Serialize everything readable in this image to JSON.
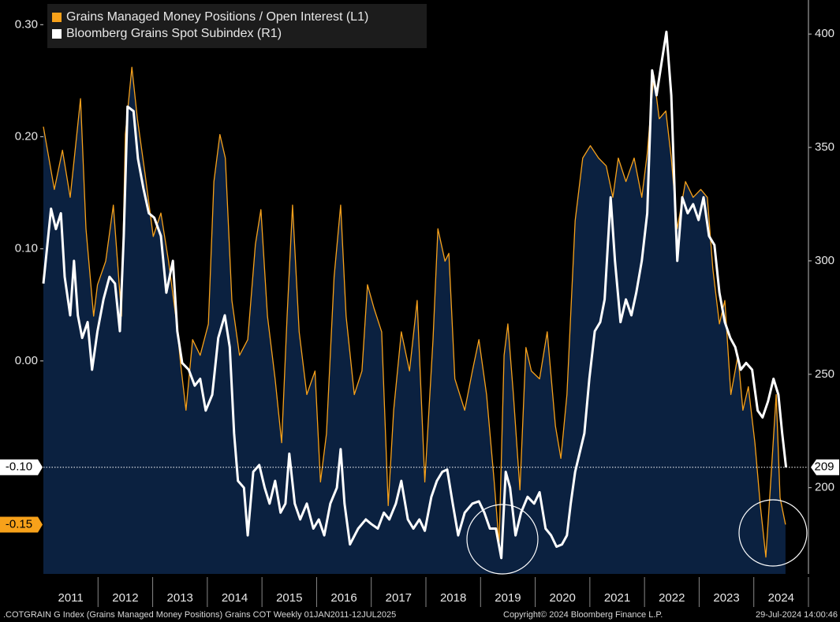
{
  "chart_data": {
    "type": "line",
    "xlim": [
      2011,
      2025
    ],
    "xticks": [
      {
        "value": 2011.5,
        "label": "2011"
      },
      {
        "value": 2012.5,
        "label": "2012"
      },
      {
        "value": 2013.5,
        "label": "2013"
      },
      {
        "value": 2014.5,
        "label": "2014"
      },
      {
        "value": 2015.5,
        "label": "2015"
      },
      {
        "value": 2016.5,
        "label": "2016"
      },
      {
        "value": 2017.5,
        "label": "2017"
      },
      {
        "value": 2018.5,
        "label": "2018"
      },
      {
        "value": 2019.5,
        "label": "2019"
      },
      {
        "value": 2020.5,
        "label": "2020"
      },
      {
        "value": 2021.5,
        "label": "2021"
      },
      {
        "value": 2022.5,
        "label": "2022"
      },
      {
        "value": 2023.5,
        "label": "2023"
      },
      {
        "value": 2024.5,
        "label": "2024"
      }
    ],
    "ylim": [
      -0.19,
      0.322
    ],
    "yticks": [
      {
        "value": 0.0,
        "label": "0.00"
      },
      {
        "value": 0.1,
        "label": "0.10"
      },
      {
        "value": 0.2,
        "label": "0.20"
      },
      {
        "value": 0.3,
        "label": "0.30"
      }
    ],
    "y2lim": [
      162,
      415
    ],
    "y2ticks": [
      200,
      250,
      300,
      350,
      400
    ],
    "legend": "upper left",
    "background": "#000000",
    "series": [
      {
        "name": "Grains Managed Money Positions / Open Interest (L1)",
        "color": "#f7a11a",
        "fill": "#0b2140",
        "last_label": "-0.15",
        "x": [
          2011.0,
          2011.2,
          2011.35,
          2011.49,
          2011.68,
          2011.78,
          2011.92,
          2011.99,
          2012.14,
          2012.28,
          2012.43,
          2012.5,
          2012.62,
          2012.72,
          2012.86,
          2013.01,
          2013.15,
          2013.29,
          2013.44,
          2013.51,
          2013.61,
          2013.73,
          2013.87,
          2014.02,
          2014.12,
          2014.23,
          2014.33,
          2014.45,
          2014.59,
          2014.74,
          2014.88,
          2014.98,
          2015.1,
          2015.24,
          2015.36,
          2015.46,
          2015.56,
          2015.68,
          2015.82,
          2015.97,
          2016.07,
          2016.18,
          2016.32,
          2016.44,
          2016.54,
          2016.69,
          2016.83,
          2016.93,
          2017.05,
          2017.19,
          2017.31,
          2017.41,
          2017.55,
          2017.7,
          2017.84,
          2017.98,
          2018.13,
          2018.22,
          2018.35,
          2018.42,
          2018.53,
          2018.71,
          2018.85,
          2018.97,
          2019.11,
          2019.25,
          2019.34,
          2019.43,
          2019.5,
          2019.6,
          2019.72,
          2019.83,
          2019.93,
          2020.08,
          2020.22,
          2020.37,
          2020.47,
          2020.58,
          2020.73,
          2020.87,
          2021.01,
          2021.16,
          2021.3,
          2021.42,
          2021.52,
          2021.66,
          2021.81,
          2021.95,
          2022.05,
          2022.17,
          2022.27,
          2022.39,
          2022.49,
          2022.6,
          2022.75,
          2022.89,
          2023.03,
          2023.15,
          2023.25,
          2023.37,
          2023.47,
          2023.58,
          2023.71,
          2023.8,
          2023.9,
          2024.02,
          2024.12,
          2024.22,
          2024.3,
          2024.41,
          2024.48,
          2024.58
        ],
        "values": [
          0.209,
          0.153,
          0.188,
          0.146,
          0.234,
          0.118,
          0.04,
          0.068,
          0.089,
          0.139,
          0.04,
          0.202,
          0.262,
          0.216,
          0.167,
          0.111,
          0.132,
          0.089,
          0.033,
          -0.002,
          -0.044,
          0.019,
          0.005,
          0.033,
          0.16,
          0.202,
          0.181,
          0.054,
          0.005,
          0.019,
          0.104,
          0.135,
          0.04,
          -0.016,
          -0.073,
          0.04,
          0.139,
          0.026,
          -0.03,
          -0.009,
          -0.108,
          -0.065,
          0.075,
          0.139,
          0.04,
          -0.03,
          -0.009,
          0.068,
          0.047,
          0.026,
          -0.129,
          -0.044,
          0.026,
          -0.009,
          0.054,
          -0.108,
          0.019,
          0.118,
          0.089,
          0.096,
          -0.016,
          -0.044,
          -0.009,
          0.019,
          -0.03,
          -0.108,
          -0.164,
          0.005,
          0.033,
          -0.03,
          -0.115,
          0.012,
          -0.009,
          -0.016,
          0.026,
          -0.058,
          -0.087,
          -0.03,
          0.125,
          0.181,
          0.192,
          0.181,
          0.174,
          0.146,
          0.181,
          0.16,
          0.181,
          0.146,
          0.185,
          0.255,
          0.216,
          0.223,
          0.181,
          0.118,
          0.16,
          0.146,
          0.153,
          0.146,
          0.082,
          0.033,
          0.054,
          -0.03,
          0.005,
          -0.044,
          -0.023,
          -0.073,
          -0.129,
          -0.175,
          -0.115,
          -0.03,
          -0.122,
          -0.146
        ]
      },
      {
        "name": "Bloomberg Grains Spot Subindex  (R1)",
        "color": "#ffffff",
        "axis": "y2",
        "last_label": "209",
        "last_label_left": "-0.10",
        "x": [
          2011.0,
          2011.09,
          2011.14,
          2011.23,
          2011.32,
          2011.39,
          2011.49,
          2011.56,
          2011.63,
          2011.71,
          2011.81,
          2011.89,
          2011.99,
          2012.1,
          2012.21,
          2012.31,
          2012.4,
          2012.47,
          2012.54,
          2012.65,
          2012.73,
          2012.83,
          2012.93,
          2013.03,
          2013.15,
          2013.25,
          2013.37,
          2013.45,
          2013.54,
          2013.66,
          2013.77,
          2013.87,
          2013.97,
          2014.09,
          2014.2,
          2014.32,
          2014.41,
          2014.49,
          2014.56,
          2014.67,
          2014.74,
          2014.84,
          2014.95,
          2015.05,
          2015.14,
          2015.24,
          2015.34,
          2015.43,
          2015.5,
          2015.6,
          2015.7,
          2015.82,
          2015.94,
          2016.04,
          2016.14,
          2016.25,
          2016.37,
          2016.44,
          2016.51,
          2016.61,
          2016.76,
          2016.9,
          2017.0,
          2017.12,
          2017.23,
          2017.33,
          2017.45,
          2017.55,
          2017.67,
          2017.77,
          2017.88,
          2017.98,
          2018.1,
          2018.2,
          2018.3,
          2018.39,
          2018.49,
          2018.59,
          2018.71,
          2018.85,
          2018.97,
          2019.07,
          2019.17,
          2019.28,
          2019.38,
          2019.46,
          2019.54,
          2019.64,
          2019.74,
          2019.86,
          2019.98,
          2020.08,
          2020.19,
          2020.29,
          2020.39,
          2020.49,
          2020.58,
          2020.65,
          2020.73,
          2020.8,
          2020.9,
          2020.99,
          2021.09,
          2021.19,
          2021.27,
          2021.38,
          2021.46,
          2021.56,
          2021.66,
          2021.76,
          2021.85,
          2021.95,
          2022.05,
          2022.14,
          2022.22,
          2022.31,
          2022.4,
          2022.49,
          2022.56,
          2022.6,
          2022.69,
          2022.79,
          2022.89,
          2022.99,
          2023.08,
          2023.18,
          2023.28,
          2023.37,
          2023.47,
          2023.57,
          2023.66,
          2023.76,
          2023.86,
          2023.97,
          2024.07,
          2024.16,
          2024.26,
          2024.36,
          2024.45,
          2024.52,
          2024.59
        ],
        "values": [
          290,
          311,
          323,
          314,
          321,
          293,
          276,
          300,
          276,
          266,
          273,
          252,
          269,
          283,
          293,
          290,
          269,
          311,
          368,
          366,
          345,
          332,
          321,
          319,
          311,
          286,
          300,
          269,
          255,
          252,
          245,
          248,
          234,
          241,
          266,
          276,
          262,
          224,
          203,
          200,
          179,
          207,
          210,
          200,
          193,
          203,
          189,
          193,
          215,
          193,
          186,
          193,
          182,
          186,
          179,
          193,
          200,
          217,
          193,
          175,
          182,
          186,
          184,
          182,
          189,
          186,
          193,
          203,
          186,
          182,
          186,
          181,
          196,
          203,
          207,
          208,
          193,
          179,
          189,
          193,
          194,
          189,
          182,
          182,
          169,
          207,
          200,
          179,
          189,
          196,
          193,
          198,
          182,
          179,
          174,
          175,
          179,
          193,
          207,
          214,
          224,
          248,
          269,
          273,
          283,
          328,
          300,
          273,
          283,
          276,
          286,
          300,
          321,
          384,
          373,
          387,
          401,
          373,
          325,
          300,
          328,
          321,
          325,
          318,
          328,
          311,
          307,
          286,
          273,
          266,
          262,
          252,
          255,
          252,
          234,
          231,
          238,
          248,
          241,
          224,
          209
        ]
      }
    ],
    "footer_left": ".COTGRAIN G Index (Grains Managed Money Positions) Grains COT  Weekly 01JAN2011-12JUL2025",
    "footer_center": "Copyright© 2024 Bloomberg Finance L.P.",
    "footer_right": "29-Jul-2024 14:00:46"
  }
}
